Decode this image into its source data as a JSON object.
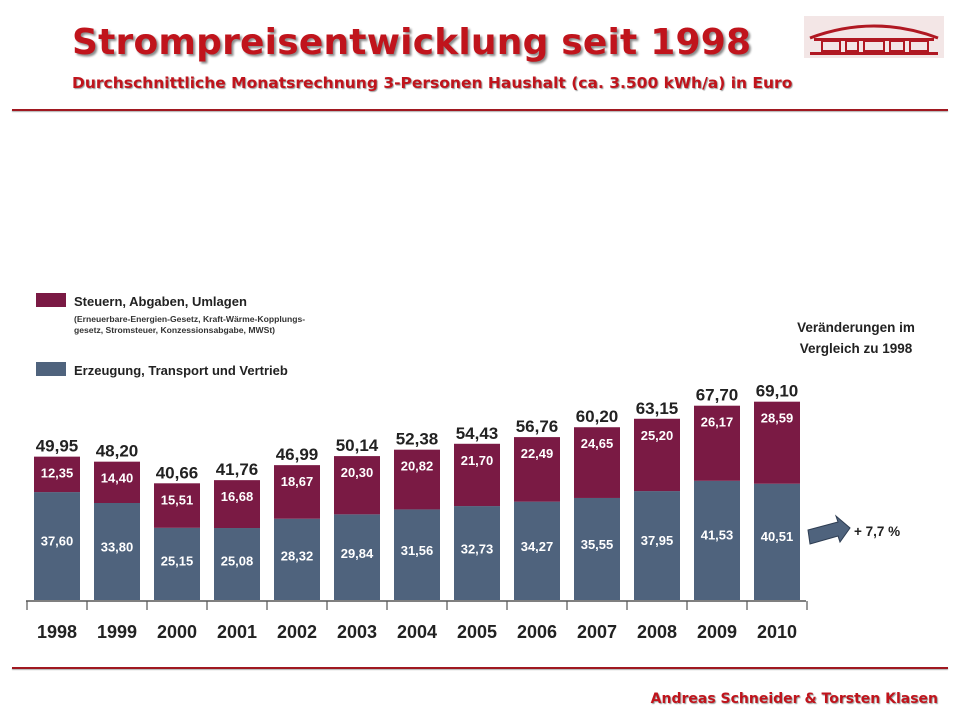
{
  "header": {
    "title": "Strompreisentwicklung seit 1998",
    "subtitle": "Durchschnittliche Monatsrechnung 3-Personen Haushalt (ca. 3.500 kWh/a) in Euro"
  },
  "footer": {
    "authors": "Andreas Schneider & Torsten Klasen"
  },
  "colors": {
    "accent": "#c0141c",
    "taxes": "#7a1a44",
    "generation": "#4f637d",
    "arrow": "#4f637d"
  },
  "chart_data": {
    "type": "bar",
    "stacked": true,
    "categories": [
      "1998",
      "1999",
      "2000",
      "2001",
      "2002",
      "2003",
      "2004",
      "2005",
      "2006",
      "2007",
      "2008",
      "2009",
      "2010"
    ],
    "series": [
      {
        "name": "Erzeugung, Transport und Vertrieb",
        "color": "#4f637d",
        "values": [
          37.6,
          33.8,
          25.15,
          25.08,
          28.32,
          29.84,
          31.56,
          32.73,
          34.27,
          35.55,
          37.95,
          41.53,
          40.51
        ],
        "labels": [
          "37,60",
          "33,80",
          "25,15",
          "25,08",
          "28,32",
          "29,84",
          "31,56",
          "32,73",
          "34,27",
          "35,55",
          "37,95",
          "41,53",
          "40,51"
        ]
      },
      {
        "name": "Steuern, Abgaben, Umlagen",
        "color": "#7a1a44",
        "values": [
          12.35,
          14.4,
          15.51,
          16.68,
          18.67,
          20.3,
          20.82,
          21.7,
          22.49,
          24.65,
          25.2,
          26.17,
          28.59
        ],
        "labels": [
          "12,35",
          "14,40",
          "15,51",
          "16,68",
          "18,67",
          "20,30",
          "20,82",
          "21,70",
          "22,49",
          "24,65",
          "25,20",
          "26,17",
          "28,59"
        ]
      }
    ],
    "totals": [
      49.95,
      48.2,
      40.66,
      41.76,
      46.99,
      50.14,
      52.38,
      54.43,
      56.76,
      60.2,
      63.15,
      67.7,
      69.1
    ],
    "total_labels": [
      "49,95",
      "48,20",
      "40,66",
      "41,76",
      "46,99",
      "50,14",
      "52,38",
      "54,43",
      "56,76",
      "60,20",
      "63,15",
      "67,70",
      "69,10"
    ],
    "legend": {
      "placement": "top-left",
      "items": [
        {
          "label": "Steuern, Abgaben, Umlagen",
          "note_line1": "(Erneuerbare-Energien-Gesetz, Kraft-Wärme-Kopplungs-",
          "note_line2": "gesetz, Stromsteuer, Konzessionsabgabe, MWSt)"
        },
        {
          "label": "Erzeugung, Transport und Vertrieb"
        }
      ]
    },
    "annotation": {
      "heading_line1": "Veränderungen im",
      "heading_line2": "Vergleich zu 1998",
      "change": "+ 7,7 %"
    },
    "grid": false
  }
}
